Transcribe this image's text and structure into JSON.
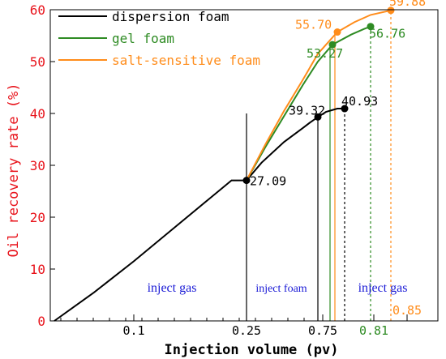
{
  "chart_data": {
    "type": "line",
    "xlabel": "Injection volume (pv)",
    "ylabel": "Oil recovery rate (%)",
    "ylim": [
      0,
      60
    ],
    "yticks": [
      0,
      10,
      20,
      30,
      40,
      50,
      60
    ],
    "xtick_labels": [
      {
        "x": 0.1,
        "label": "0.1",
        "color": "#000000"
      },
      {
        "x": 0.25,
        "label": "0.25",
        "color": "#000000"
      },
      {
        "x": 0.75,
        "label": "0.75",
        "color": "#000000"
      },
      {
        "x": 0.81,
        "label": "0.81",
        "color": "#2e8b23"
      },
      {
        "x": 0.85,
        "label": "0.85",
        "color": "#ff8c1a"
      }
    ],
    "legend_position": "top-left",
    "ylabel_color": "#e8121a",
    "series": [
      {
        "name": "dispersion foam",
        "color": "#000000",
        "points": [
          [
            0,
            0
          ],
          [
            0.05,
            5.5
          ],
          [
            0.1,
            11.5
          ],
          [
            0.15,
            17.5
          ],
          [
            0.2,
            23.5
          ],
          [
            0.23,
            27.09
          ],
          [
            0.25,
            27.09
          ],
          [
            0.29,
            30.5
          ],
          [
            0.35,
            34.5
          ],
          [
            0.4,
            37.2
          ],
          [
            0.42,
            38.3
          ],
          [
            0.44,
            39.32
          ],
          [
            0.46,
            40.3
          ],
          [
            0.49,
            40.93
          ],
          [
            0.5,
            40.93
          ]
        ],
        "markers": [
          [
            0.25,
            27.09
          ],
          [
            0.44,
            39.32
          ],
          [
            0.5,
            40.93
          ]
        ]
      },
      {
        "name": "gel foam",
        "color": "#2e8b23",
        "points": [
          [
            0.25,
            27.09
          ],
          [
            0.3,
            33.5
          ],
          [
            0.35,
            39.5
          ],
          [
            0.4,
            45.5
          ],
          [
            0.44,
            50.0
          ],
          [
            0.48,
            53.27
          ],
          [
            0.52,
            55.2
          ],
          [
            0.56,
            56.3
          ],
          [
            0.58,
            56.76
          ]
        ],
        "markers": [
          [
            0.48,
            53.27
          ],
          [
            0.58,
            56.76
          ]
        ]
      },
      {
        "name": "salt-sensitive foam",
        "color": "#ff8c1a",
        "points": [
          [
            0.25,
            27.09
          ],
          [
            0.3,
            34.0
          ],
          [
            0.35,
            40.5
          ],
          [
            0.4,
            46.5
          ],
          [
            0.44,
            51.5
          ],
          [
            0.49,
            55.7
          ],
          [
            0.53,
            57.6
          ],
          [
            0.58,
            59.0
          ],
          [
            0.63,
            59.88
          ]
        ],
        "markers": [
          [
            0.49,
            55.7
          ],
          [
            0.63,
            59.88
          ]
        ]
      }
    ],
    "data_labels": [
      {
        "text": "27.09",
        "x": 0.25,
        "y": 27.09,
        "color": "#000000"
      },
      {
        "text": "39.32",
        "x": 0.44,
        "y": 39.32,
        "color": "#000000"
      },
      {
        "text": "40.93",
        "x": 0.5,
        "y": 40.93,
        "color": "#000000"
      },
      {
        "text": "53.27",
        "x": 0.48,
        "y": 53.27,
        "color": "#2e8b23"
      },
      {
        "text": "56.76",
        "x": 0.58,
        "y": 56.76,
        "color": "#2e8b23"
      },
      {
        "text": "55.70",
        "x": 0.49,
        "y": 55.7,
        "color": "#ff8c1a"
      },
      {
        "text": "59.88",
        "x": 0.63,
        "y": 59.88,
        "color": "#ff8c1a"
      }
    ],
    "stage_labels": [
      {
        "text": "inject gas",
        "color": "#1a1ad6"
      },
      {
        "text": "inject foam",
        "color": "#1a1ad6"
      },
      {
        "text": "inject gas",
        "color": "#1a1ad6"
      }
    ],
    "divider_lines": [
      {
        "x": 0.25,
        "y_top": 40,
        "color": "#000000",
        "style": "solid"
      },
      {
        "x": 0.44,
        "y_top": 39.32,
        "color": "#000000",
        "style": "solid"
      },
      {
        "x": 0.5,
        "y_top": 40.93,
        "color": "#000000",
        "style": "dotted"
      },
      {
        "x": 0.47,
        "y_top": 53.27,
        "color": "#2e8b23",
        "style": "solid"
      },
      {
        "x": 0.58,
        "y_top": 56.76,
        "color": "#2e8b23",
        "style": "dotted"
      },
      {
        "x": 0.48,
        "y_top": 55.7,
        "color": "#ff8c1a",
        "style": "solid"
      },
      {
        "x": 0.63,
        "y_top": 59.88,
        "color": "#ff8c1a",
        "style": "dotted"
      }
    ]
  }
}
